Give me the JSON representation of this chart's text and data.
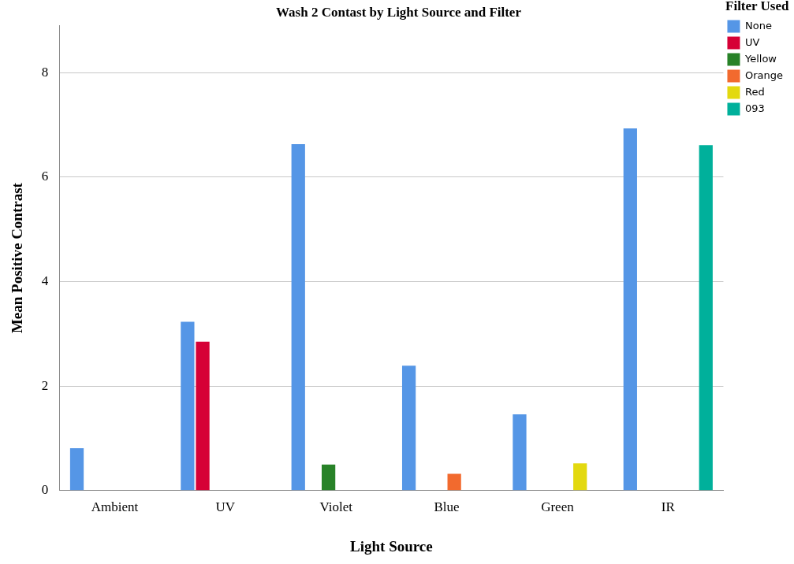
{
  "chart_data": {
    "type": "bar",
    "title": "Wash 2 Contast by Light Source and Filter",
    "xlabel": "Light Source",
    "ylabel": "Mean Positive Contrast",
    "legend_title": "Filter Used",
    "categories": [
      "Ambient",
      "UV",
      "Violet",
      "Blue",
      "Green",
      "IR"
    ],
    "series": [
      {
        "name": "None",
        "color": "#5596e6",
        "values": [
          0.81,
          3.23,
          6.63,
          2.39,
          1.46,
          6.93
        ]
      },
      {
        "name": "UV",
        "color": "#d60036",
        "values": [
          null,
          2.85,
          null,
          null,
          null,
          null
        ]
      },
      {
        "name": "Yellow",
        "color": "#288228",
        "values": [
          null,
          null,
          0.5,
          null,
          null,
          null
        ]
      },
      {
        "name": "Orange",
        "color": "#f26a2e",
        "values": [
          null,
          null,
          null,
          0.32,
          null,
          null
        ]
      },
      {
        "name": "Red",
        "color": "#e3d90f",
        "values": [
          null,
          null,
          null,
          null,
          0.52,
          null
        ]
      },
      {
        "name": "093",
        "color": "#00b09b",
        "values": [
          null,
          null,
          null,
          null,
          null,
          6.61
        ]
      }
    ],
    "ylim": [
      0,
      8.9
    ],
    "yticks": [
      0,
      2,
      4,
      6,
      8
    ],
    "grid": "y",
    "legend": "top right"
  }
}
